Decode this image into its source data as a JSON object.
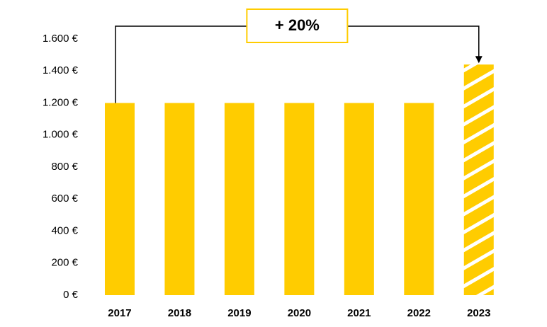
{
  "chart_data": {
    "type": "bar",
    "categories": [
      "2017",
      "2018",
      "2019",
      "2020",
      "2021",
      "2022",
      "2023"
    ],
    "values": [
      1200,
      1200,
      1200,
      1200,
      1200,
      1200,
      1440
    ],
    "hatched": [
      false,
      false,
      false,
      false,
      false,
      false,
      true
    ],
    "color": "#ffcc00",
    "annotation": "+ 20%",
    "ylim": [
      0,
      1600
    ],
    "yticks": [
      {
        "value": 0,
        "label": "0 €"
      },
      {
        "value": 200,
        "label": "200 €"
      },
      {
        "value": 400,
        "label": "400 €"
      },
      {
        "value": 600,
        "label": "600 €"
      },
      {
        "value": 800,
        "label": "800 €"
      },
      {
        "value": 1000,
        "label": "1.000 €"
      },
      {
        "value": 1200,
        "label": "1.200 €"
      },
      {
        "value": 1400,
        "label": "1.400 €"
      },
      {
        "value": 1600,
        "label": "1.600 €"
      }
    ],
    "grid": false
  }
}
